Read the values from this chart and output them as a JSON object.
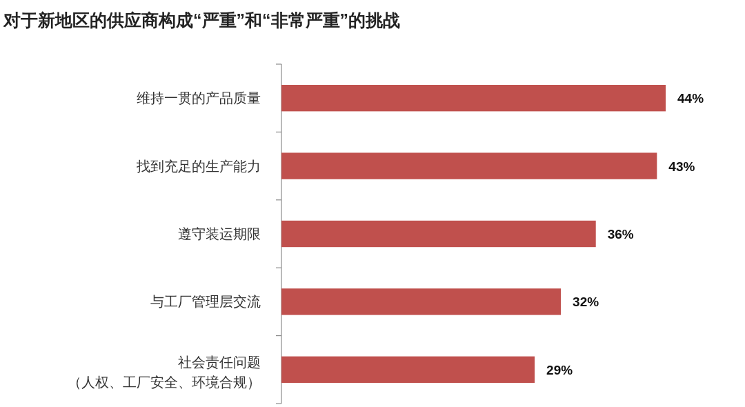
{
  "chart_data": {
    "type": "bar",
    "orientation": "horizontal",
    "title": "对于新地区的供应商构成“严重”和“非常严重”的挑战",
    "categories": [
      "维持一贯的产品质量",
      "找到充足的生产能力",
      "遵守装运期限",
      "与工厂管理层交流",
      "社会责任问题（人权、工厂安全、环境合规）"
    ],
    "values": [
      44,
      43,
      36,
      32,
      29
    ],
    "color": "#c0504d",
    "value_labels": [
      "44%",
      "43%",
      "36%",
      "32%",
      "29%"
    ]
  }
}
